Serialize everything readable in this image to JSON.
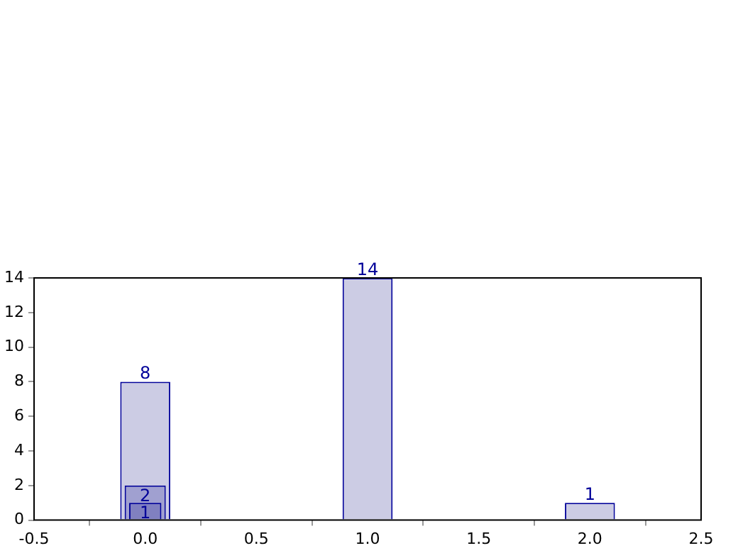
{
  "chart_data": {
    "type": "bar",
    "x": [
      0,
      1,
      2
    ],
    "series": [
      {
        "color": "#ccccE4",
        "values": [
          8,
          14,
          1
        ]
      },
      {
        "color": "#a0a0d0",
        "values": [
          2,
          null,
          null
        ]
      },
      {
        "color": "#8080c0",
        "values": [
          1,
          null,
          null
        ]
      }
    ],
    "xlim": [
      -0.5,
      2.5
    ],
    "xticks": [
      -0.5,
      {
        "value": 0,
        "label": "0.0"
      },
      0.5,
      {
        "value": 1,
        "label": "1.0"
      },
      1.5,
      {
        "value": 2,
        "label": "2.0"
      },
      2.5
    ],
    "ylim": [
      0,
      14
    ],
    "yticks": [
      0,
      2,
      4,
      6,
      8,
      10,
      12,
      14
    ],
    "data_labels": true,
    "grid": false,
    "legend": false
  }
}
